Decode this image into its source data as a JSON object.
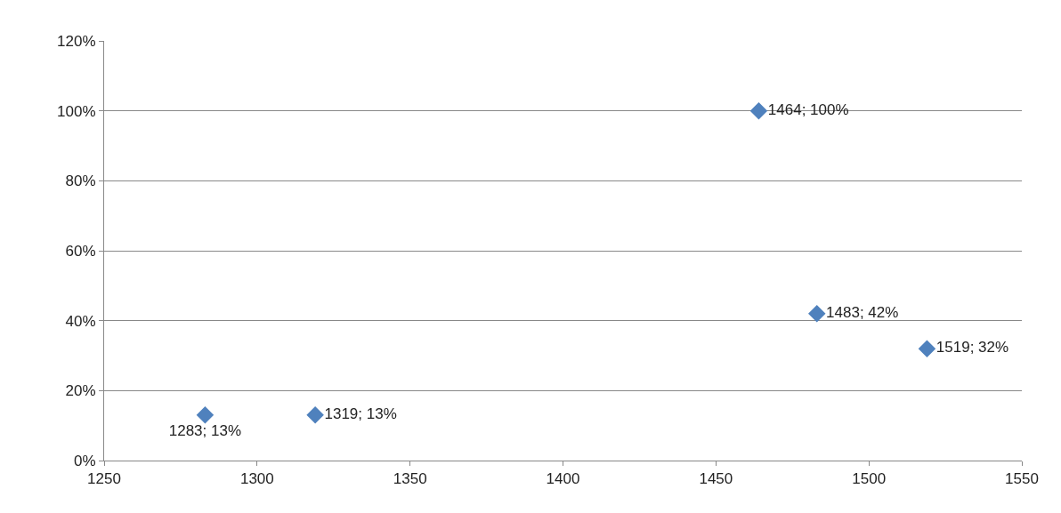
{
  "chart_data": {
    "type": "scatter",
    "x": [
      1283,
      1319,
      1464,
      1483,
      1519
    ],
    "values": [
      13,
      13,
      100,
      42,
      32
    ],
    "color": "#4f81bd",
    "marker": "diamond",
    "grid": "y",
    "legend": false,
    "value_labels": [
      "1283; 13%",
      "1319; 13%",
      "1464; 100%",
      "1483; 42%",
      "1519; 32%"
    ],
    "xlim": [
      1250,
      1550
    ],
    "xticks": [
      1250,
      1300,
      1350,
      1400,
      1450,
      1500,
      1550
    ],
    "ylim": [
      0,
      120
    ],
    "yticks": [
      {
        "value": 0,
        "label": "0%"
      },
      {
        "value": 20,
        "label": "20%"
      },
      {
        "value": 40,
        "label": "40%"
      },
      {
        "value": 60,
        "label": "60%"
      },
      {
        "value": 80,
        "label": "80%"
      },
      {
        "value": 100,
        "label": "100%"
      },
      {
        "value": 120,
        "label": "120%"
      }
    ]
  }
}
